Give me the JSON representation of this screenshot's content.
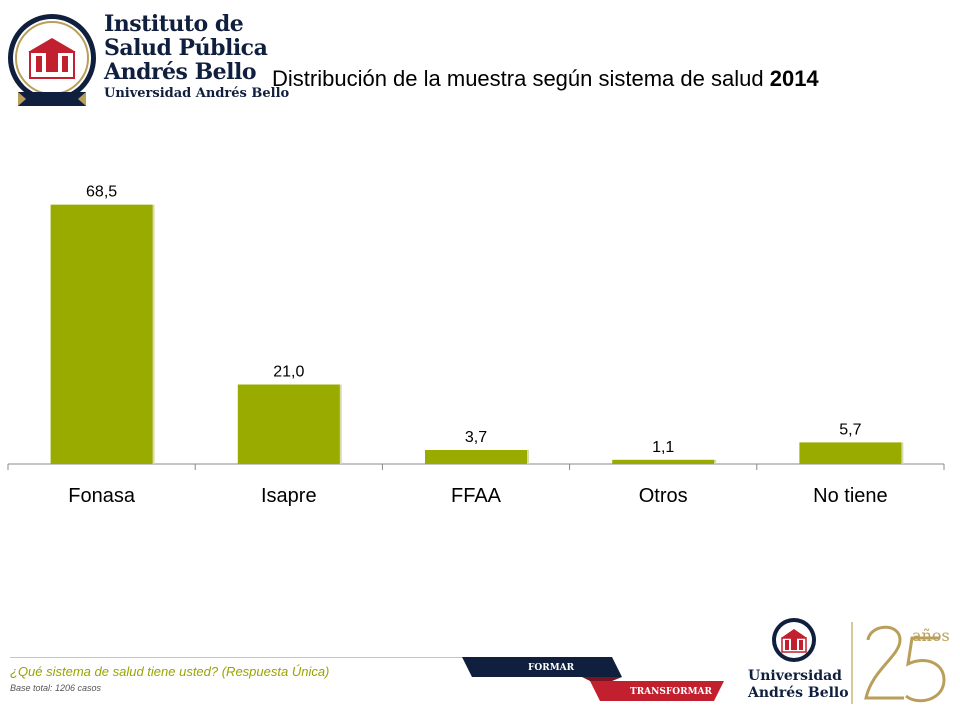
{
  "header": {
    "logo_line1": "Instituto de",
    "logo_line2": "Salud Pública",
    "logo_line3": "Andrés Bello",
    "logo_line4": "Universidad Andrés Bello",
    "title_main": "Distribución de la muestra según sistema de salud",
    "title_year": "2014"
  },
  "chart_data": {
    "type": "bar",
    "categories": [
      "Fonasa",
      "Isapre",
      "FFAA",
      "Otros",
      "No tiene"
    ],
    "values": [
      68.5,
      21.0,
      3.7,
      1.1,
      5.7
    ],
    "data_labels": [
      "68,5",
      "21,0",
      "3,7",
      "1,1",
      "5,7"
    ],
    "title": "Distribución de la muestra según sistema de salud 2014",
    "xlabel": "",
    "ylabel": "",
    "ylim": [
      0,
      70
    ],
    "grid": false,
    "legend": "none",
    "bar_color": "#9aab00"
  },
  "footer": {
    "question": "¿Qué sistema de salud tiene usted? (Respuesta Única)",
    "base": "Base total: 1206 casos",
    "band1": "FORMAR",
    "band2": "TRANSFORMAR",
    "university_line1": "Universidad",
    "university_line2": "Andrés Bello",
    "anniversary": "años"
  },
  "colors": {
    "navy": "#0f1f3d",
    "red": "#c3202f",
    "gold": "#b99f5a",
    "olive": "#9aab00"
  }
}
